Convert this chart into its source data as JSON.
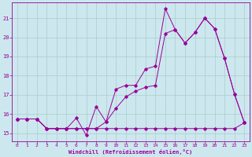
{
  "xlabel": "Windchill (Refroidissement éolien,°C)",
  "bg_color": "#cce8ee",
  "line_color": "#990099",
  "grid_color": "#aacccc",
  "xlim": [
    -0.5,
    23.5
  ],
  "ylim": [
    14.6,
    21.8
  ],
  "yticks": [
    15,
    16,
    17,
    18,
    19,
    20,
    21
  ],
  "xticks": [
    0,
    1,
    2,
    3,
    4,
    5,
    6,
    7,
    8,
    9,
    10,
    11,
    12,
    13,
    14,
    15,
    16,
    17,
    18,
    19,
    20,
    21,
    22,
    23
  ],
  "line1_x": [
    0,
    1,
    2,
    3,
    4,
    5,
    6,
    7,
    8,
    9,
    10,
    11,
    12,
    13,
    14,
    15,
    16,
    17,
    18,
    19,
    20,
    21,
    22,
    23
  ],
  "line1_y": [
    15.75,
    15.75,
    15.75,
    15.25,
    15.25,
    15.25,
    15.25,
    15.25,
    15.25,
    15.25,
    15.25,
    15.25,
    15.25,
    15.25,
    15.25,
    15.25,
    15.25,
    15.25,
    15.25,
    15.25,
    15.25,
    15.25,
    15.25,
    15.55
  ],
  "line2_x": [
    0,
    1,
    2,
    3,
    4,
    5,
    6,
    7,
    8,
    9,
    10,
    11,
    12,
    13,
    14,
    15,
    16,
    17,
    18,
    19,
    20,
    21,
    22,
    23
  ],
  "line2_y": [
    15.75,
    15.75,
    15.75,
    15.25,
    15.25,
    15.25,
    15.8,
    14.9,
    16.4,
    15.6,
    17.3,
    17.5,
    17.5,
    18.35,
    18.5,
    21.5,
    20.4,
    19.7,
    20.25,
    21.0,
    20.45,
    18.9,
    17.05,
    15.55
  ],
  "line3_x": [
    0,
    1,
    2,
    3,
    4,
    5,
    6,
    7,
    8,
    9,
    10,
    11,
    12,
    13,
    14,
    15,
    16,
    17,
    18,
    19,
    20,
    21,
    22,
    23
  ],
  "line3_y": [
    15.75,
    15.75,
    15.75,
    15.25,
    15.25,
    15.25,
    15.25,
    15.25,
    15.25,
    15.6,
    16.3,
    16.9,
    17.2,
    17.4,
    17.5,
    20.2,
    20.4,
    19.7,
    20.25,
    21.0,
    20.45,
    18.9,
    17.05,
    15.55
  ]
}
